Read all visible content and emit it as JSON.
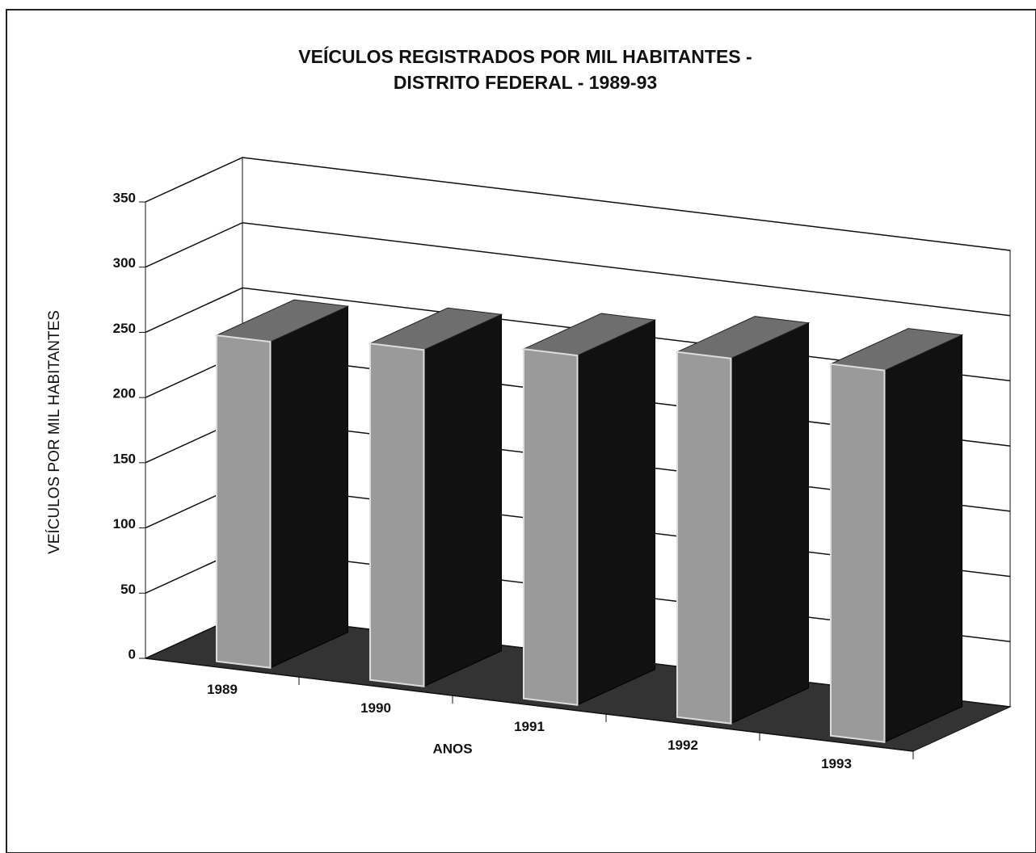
{
  "chart_data": {
    "type": "bar3d",
    "title": "VEÍCULOS REGISTRADOS POR MIL HABITANTES -",
    "subtitle": "DISTRITO FEDERAL - 1989-93",
    "x_label": "ANOS",
    "y_label": "VEÍCULOS POR MIL HABITANTES",
    "categories": [
      "1989",
      "1990",
      "1991",
      "1992",
      "1993"
    ],
    "values": [
      250,
      258,
      268,
      280,
      285
    ],
    "color": "#9a9a9a",
    "ylim": [
      0,
      350
    ],
    "yticks": [
      0,
      50,
      100,
      150,
      200,
      250,
      300,
      350
    ],
    "grid": true
  }
}
